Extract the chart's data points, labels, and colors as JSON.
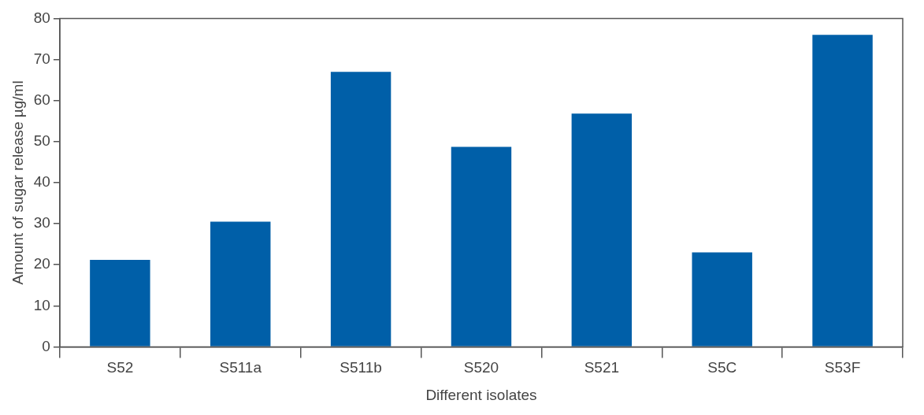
{
  "chart_data": {
    "type": "bar",
    "xlabel": "Different isolates",
    "ylabel": "Amount of sugar release µg/ml",
    "categories": [
      "S52",
      "S511a",
      "S511b",
      "S520",
      "S521",
      "S5C",
      "S53F"
    ],
    "values": [
      21.2,
      30.5,
      67,
      48.7,
      56.8,
      23,
      76
    ],
    "color": "#005fa8",
    "ylim": [
      0,
      80
    ],
    "yticks": [
      0,
      10,
      20,
      30,
      40,
      50,
      60,
      70,
      80
    ],
    "grid": false,
    "legend": false
  }
}
